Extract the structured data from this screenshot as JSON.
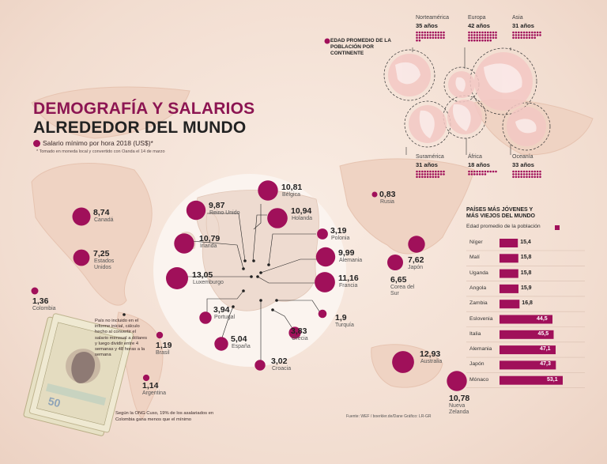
{
  "title_line1": "DEMOGRAFÍA Y SALARIOS",
  "title_line2": "ALREDEDOR DEL MUNDO",
  "legend_label": "Salario mínimo por hora 2018 (US$)*",
  "footnote": "* Tomado en moneda local y convertido con Oanda el 14 de marzo",
  "colors": {
    "accent": "#a0105a",
    "title": "#8c1552"
  },
  "chart_data": [
    {
      "type": "bubble-map",
      "title": "Salario mínimo por hora 2018 (US$)*",
      "points": [
        {
          "country": "Canadá",
          "value": "8,74"
        },
        {
          "country": "Estados Unidos",
          "value": "7,25"
        },
        {
          "country": "Colombia",
          "value": "1,36"
        },
        {
          "country": "Brasil",
          "value": "1,19"
        },
        {
          "country": "Argentina",
          "value": "1,14"
        },
        {
          "country": "Reino Unido",
          "value": "9,87"
        },
        {
          "country": "Bélgica",
          "value": "10,81"
        },
        {
          "country": "Holanda",
          "value": "10,94"
        },
        {
          "country": "Polonia",
          "value": "3,19"
        },
        {
          "country": "Irlanda",
          "value": "10,79"
        },
        {
          "country": "Alemania",
          "value": "9,99"
        },
        {
          "country": "Luxemburgo",
          "value": "13,05"
        },
        {
          "country": "Francia",
          "value": "11,16"
        },
        {
          "country": "Portugal",
          "value": "3,94"
        },
        {
          "country": "Turquía",
          "value": "1,9"
        },
        {
          "country": "España",
          "value": "5,04"
        },
        {
          "country": "Grecia",
          "value": "3,83"
        },
        {
          "country": "Croacia",
          "value": "3,02"
        },
        {
          "country": "Rusia",
          "value": "0,83"
        },
        {
          "country": "Japón",
          "value": "7,62"
        },
        {
          "country": "Corea del Sur",
          "value": "6,65"
        },
        {
          "country": "Australia",
          "value": "12,93"
        },
        {
          "country": "Nueva Zelanda",
          "value": "10,78"
        }
      ]
    },
    {
      "type": "pictogram",
      "title": "EDAD PROMEDIO DE LA POBLACIÓN POR CONTINENTE",
      "items": [
        {
          "name": "Norteamérica",
          "age": "35 años"
        },
        {
          "name": "Europa",
          "age": "42 años"
        },
        {
          "name": "Asia",
          "age": "31 años"
        },
        {
          "name": "Suramérica",
          "age": "31 años"
        },
        {
          "name": "África",
          "age": "18 años"
        },
        {
          "name": "Oceanía",
          "age": "33 años"
        }
      ]
    },
    {
      "type": "bar",
      "title": "PAÍSES MÁS JÓVENES Y MÁS VIEJOS DEL MUNDO",
      "subtitle": "Edad promedio de la población",
      "categories": [
        "Níger",
        "Malí",
        "Uganda",
        "Angola",
        "Zambia",
        "Eslovenia",
        "Italia",
        "Alemania",
        "Japón",
        "Mónaco"
      ],
      "values": [
        15.4,
        15.8,
        15.8,
        15.9,
        16.8,
        44.5,
        45.5,
        47.1,
        47.3,
        53.1
      ],
      "labels": [
        "15,4",
        "15,8",
        "15,8",
        "15,9",
        "16,8",
        "44,5",
        "45,5",
        "47,1",
        "47,3",
        "53,1"
      ]
    }
  ],
  "side_note": "País no incluido en el informe inicial, cálculo hecho al convertir el salario mensual a dólares y luego dividir entre 4 semanas y 48 horas a la semana",
  "bottom_note_1": "Según la ONG Cuso, 19% de los asalariados en",
  "bottom_note_2": "Colombia gana menos que el mínimo",
  "source": "Fuente: WEF / boerkler.de/Dane   Gráfico: LR-GR"
}
